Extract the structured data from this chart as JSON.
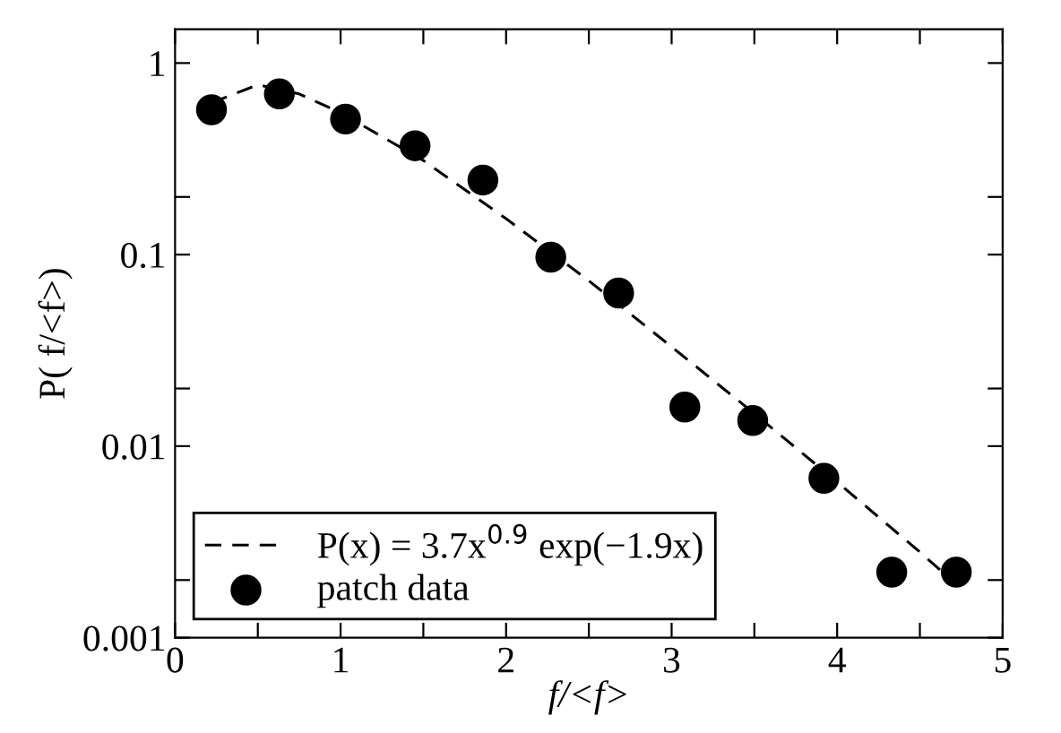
{
  "chart_data": {
    "type": "scatter",
    "xlabel": "f/<f>",
    "ylabel": "P( f/<f>)",
    "log": "y",
    "grid": false,
    "legend": "bottom left",
    "xlim": [
      0,
      5
    ],
    "xticks": [
      0,
      {
        "value": 0.5,
        "label": null
      },
      1,
      {
        "value": 1.5,
        "label": null
      },
      2,
      {
        "value": 2.5,
        "label": null
      },
      3,
      {
        "value": 3.5,
        "label": null
      },
      4,
      {
        "value": 4.5,
        "label": null
      },
      5
    ],
    "ylim": [
      0.001,
      1.5
    ],
    "yticks": [
      {
        "value": 0.001,
        "label": "0.001"
      },
      {
        "value": 0.002,
        "label": null
      },
      {
        "value": 0.01,
        "label": "0.01"
      },
      {
        "value": 0.02,
        "label": null
      },
      {
        "value": 0.1,
        "label": "0.1"
      },
      {
        "value": 0.2,
        "label": null
      },
      {
        "value": 1,
        "label": "1"
      }
    ],
    "series": [
      {
        "name": "P(x) = 3.7x$^{0.9}$ exp(−1.9x)",
        "type": "line",
        "line_style": "dashed",
        "marker": "none",
        "color": "#000000",
        "x": [
          0.22,
          0.5,
          0.75,
          1,
          1.5,
          2,
          2.5,
          3,
          3.5,
          4,
          4.5,
          4.72
        ],
        "values": [
          0.62,
          0.77,
          0.69,
          0.55,
          0.31,
          0.154,
          0.073,
          0.033,
          0.0148,
          0.0065,
          0.0028,
          0.0019
        ]
      },
      {
        "name": "patch data",
        "marker": "circle",
        "color": "#000000",
        "x": [
          0.22,
          0.63,
          1.03,
          1.45,
          1.86,
          2.27,
          2.68,
          3.08,
          3.49,
          3.92,
          4.33,
          4.72
        ],
        "values": [
          0.57,
          0.69,
          0.51,
          0.37,
          0.245,
          0.097,
          0.063,
          0.016,
          0.0136,
          0.0068,
          0.0022,
          0.0022
        ]
      }
    ]
  }
}
